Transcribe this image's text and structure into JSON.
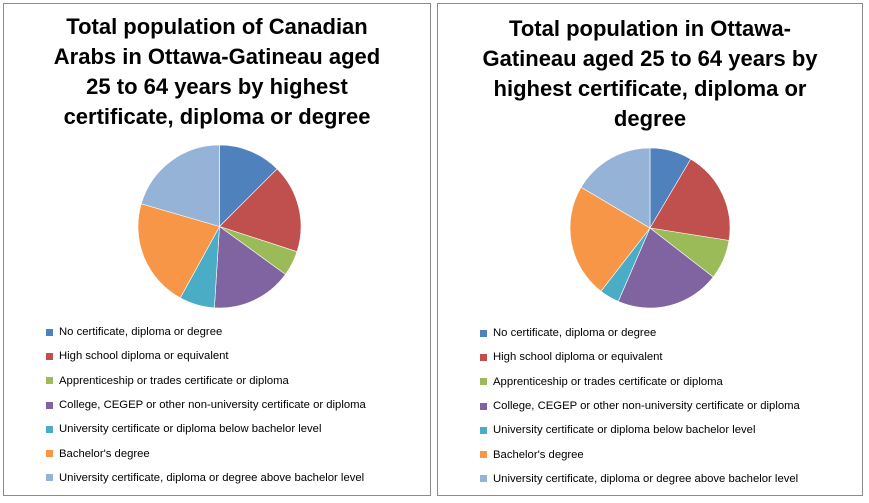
{
  "chart_data": [
    {
      "type": "pie",
      "title": "Total population of Canadian Arabs in Ottawa-Gatineau aged 25 to 64 years by highest certificate, diploma or degree",
      "categories": [
        "No certificate, diploma or degree",
        "High school diploma or equivalent",
        "Apprenticeship or trades certificate or diploma",
        "College, CEGEP or other non-university certificate or diploma",
        "University certificate or diploma below bachelor level",
        "Bachelor's degree",
        "University certificate, diploma or degree above bachelor level"
      ],
      "values": [
        12.5,
        17.5,
        5.0,
        16.0,
        7.0,
        21.5,
        20.5
      ],
      "colors": [
        "#4f81bd",
        "#c0504d",
        "#9bbb59",
        "#8064a2",
        "#4bacc6",
        "#f79646",
        "#95b3d7"
      ],
      "legend_position": "bottom"
    },
    {
      "type": "pie",
      "title": "Total population in Ottawa-Gatineau aged 25 to 64 years by highest certificate, diploma or degree",
      "categories": [
        "No certificate, diploma or degree",
        "High school diploma or equivalent",
        "Apprenticeship or trades certificate or diploma",
        "College, CEGEP or other non-university certificate or diploma",
        "University certificate or diploma below bachelor level",
        "Bachelor's degree",
        "University certificate, diploma or degree above bachelor level"
      ],
      "values": [
        8.5,
        19.0,
        8.0,
        21.0,
        4.0,
        23.0,
        16.5
      ],
      "colors": [
        "#4f81bd",
        "#c0504d",
        "#9bbb59",
        "#8064a2",
        "#4bacc6",
        "#f79646",
        "#95b3d7"
      ],
      "legend_position": "bottom"
    }
  ]
}
